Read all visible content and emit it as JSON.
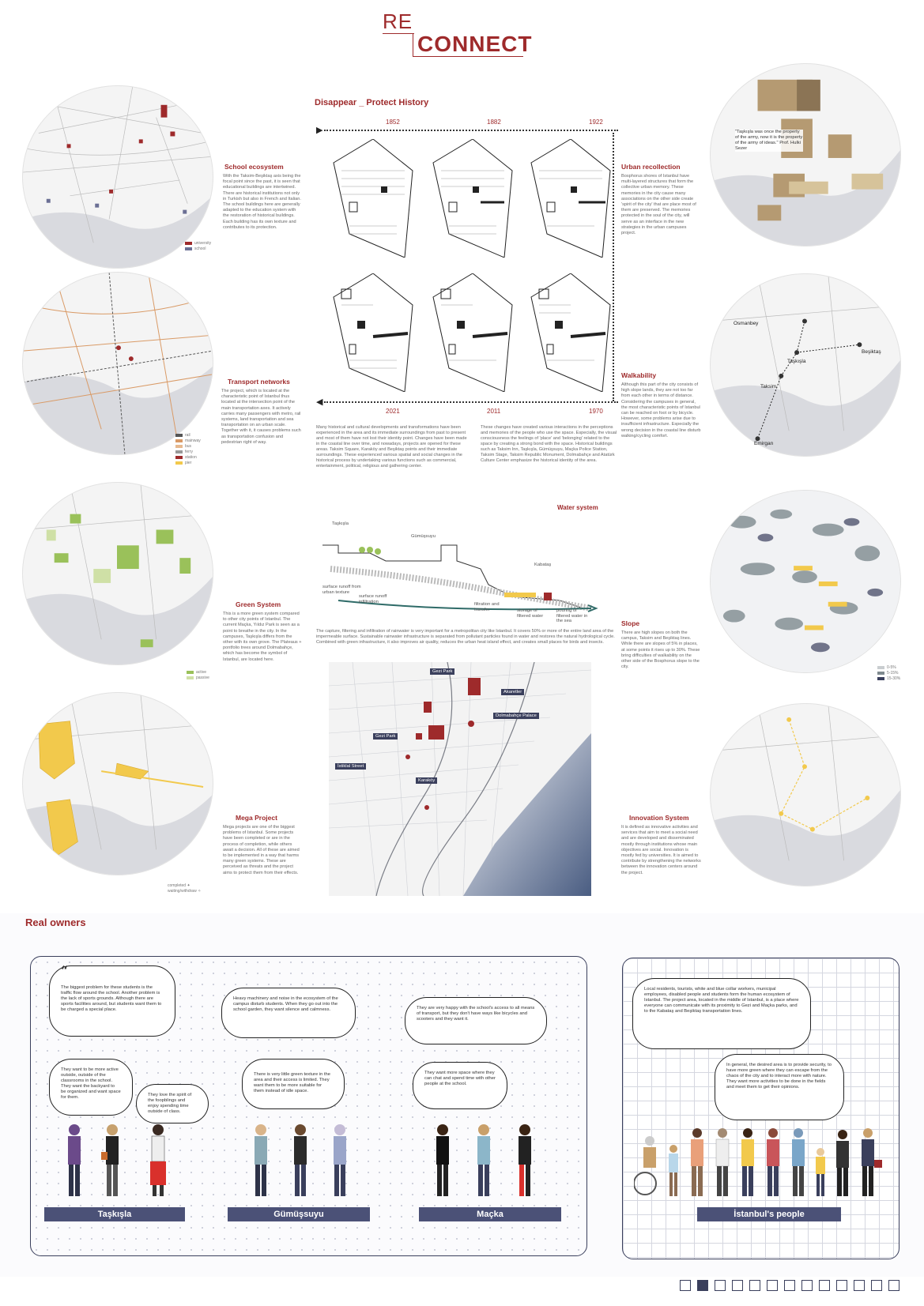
{
  "title": {
    "part1": "RE",
    "part2": "CONNECT"
  },
  "left_sections": [
    {
      "id": "school",
      "title": "School ecosystem",
      "text": "With the Taksim-Beşiktaş axis being the focal point since the past, it is seen that educational buildings are intertwined. There are historical institutions not only in Turkish but also in French and Italian. The school buildings here are generally adapted to the education system with the restoration of historical buildings. Each building has its own texture and contributes to its protection.",
      "legend": [
        "university",
        "school"
      ]
    },
    {
      "id": "transport",
      "title": "Transport networks",
      "text": "The project, which is located at the characteristic point of Istanbul thus located at the intersection point of the main transportation axes. It actively carries many passengers with metro, rail systems, land transportation and sea transportation on an urban scale. Together with it, it causes problems such as transportation confusion and pedestrian right of way.",
      "legend": [
        "rail",
        "mainway",
        "bus",
        "ferry",
        "station",
        "pier"
      ]
    },
    {
      "id": "green",
      "title": "Green System",
      "text": "This is a more green system compared to other city points of Istanbul. The current Maçka, Yıldız Park is seen as a point to breathe in the city. In the campuses, Taşkışla differs from the other with its own grove. The Plateaus + pontfolio trees around Dolmabahçe, which has become the symbol of Istanbul, are located here.",
      "legend": [
        "active",
        "passive"
      ]
    },
    {
      "id": "mega",
      "title": "Mega Project",
      "text": "Mega projects are one of the biggest problems of Istanbul. Some projects have been completed or are in the process of completion, while others await a decision. All of these are aimed to be implemented in a way that harms many green systems. These are perceived as threats and the project aims to protect them from their effects.",
      "legend": [
        "completed",
        "waiting/withdraw"
      ]
    }
  ],
  "right_sections": [
    {
      "id": "urban",
      "title": "Urban recollection",
      "text": "Bosphorus shores of Istanbul have multi-layered structures that form the collective urban memory. These memories in the city cause many associations on the other side create 'spirit of the city' that are place most of them are preserved. The memories protected in the soul of the city, will serve as an interface in the new strategies in the urban campuses project.",
      "quote": "\"Taşkışla was once the property of the army, now it is the property of the army of ideas.\" Prof. Hulki Sezer"
    },
    {
      "id": "walk",
      "title": "Walkability",
      "text": "Although this part of the city consists of high slope lands, they are not too far from each other in terms of distance. Considering the campuses in general, the most characteristic points of Istanbul can be reached on foot or by bicycle. However, some problems arise due to insufficient infrastructure. Especially the wrong decision in the coastal line disturb walking/cycling comfort.",
      "places": [
        "Osmanbey",
        "Taşkışla",
        "Taksim",
        "Beşiktaş",
        "Emirgan"
      ]
    },
    {
      "id": "slope",
      "title": "Slope",
      "text": "There are high slopes on both the campus, Taksim and Beşiktaş lines. While there are slopes of 5% in places, at some points it rises up to 30%. These bring difficulties of walkability on the other side of the Bosphorus slope to the city.",
      "legend": [
        "0-5%",
        "5-15%",
        "15-30%"
      ]
    },
    {
      "id": "innovation",
      "title": "Innovation System",
      "text": "It is defined as innovative activities and services that aim to meet a social need and are developed and disseminated mostly through institutions whose main objectives are social. Innovation is mostly fed by universities. It is aimed to contribute by strengthening the networks between the innovation centers around the project."
    }
  ],
  "history": {
    "title": "Disappear _ Protect History",
    "top_years": [
      "1852",
      "1882",
      "1922"
    ],
    "bottom_years": [
      "2021",
      "2011",
      "1970"
    ],
    "text_left": "Many historical and cultural developments and transformations have been experienced in the area and its immediate surroundings from past to present and most of them have not lost their identity point. Changes have been made in the coastal line over time, and nowadays, projects are opened for these areas. Taksim Square, Karaköy and Beşiktaş points and their immediate surroundings. These experienced various spatial and social changes in the historical process by undertaking various functions such as commercial, entertainment, political, religious and gathering center.",
    "text_right": "These changes have created various interactions in the perceptions and memories of the people who use the space. Especially, the visual consciousness the feelings of 'place' and 'belonging' related to the space by creating a strong bond with the space. Historical buildings such as Taksim Inn, Taşkışla, Gümüşsuyu, Maçka Police Station, Taksim Stage, Taksim Republic Monument, Dolmabahçe and Atatürk Culture Center emphasize the historical identity of the area."
  },
  "water": {
    "title": "Water system",
    "labels": {
      "taskisla": "Taşkışla",
      "gumussuyu": "Gümüşsuyu",
      "kabatas": "Kabataş",
      "runoff_urban": "surface runoff from urban texture",
      "runoff_infil": "surface runoff infiltration",
      "filtration": "filtration and transfer",
      "storage": "storage of filtered water",
      "pouring": "pouring of filtered water in the sea"
    },
    "text": "The capture, filtering and infiltration of rainwater is very important for a metropolitan city like Istanbul. It covers 50% or more of the entire land area of the impermeable surface. Sustainable rainwater infrastructure is separated from pollutant particles found in water and restores the natural hydrological cycle. Combined with green infrastructure, it also improves air quality, reduces the urban heat island effect, and creates small places for birds and insects."
  },
  "big_map": {
    "tags": [
      "Gezi Park",
      "Akaretler",
      "Dolmabahçe Palace",
      "Gezi Park",
      "İstiklal Street",
      "Karaköy"
    ]
  },
  "real_owners": {
    "title": "Real owners",
    "groups": [
      {
        "label": "Taşkışla",
        "quotes": [
          "The biggest problem for these students is the traffic flow around the school. Another problem is the lack of sports grounds. Although there are sports facilities around, but students want them to be charged a special place.",
          "They want to be more active outside, outside of the classrooms in the school. They want the backyard to be organized and want space for them.",
          "They love the spirit of the foopblings and enjoy spending time outside of class."
        ]
      },
      {
        "label": "Gümüşsuyu",
        "quotes": [
          "Heavy machinery and noise in the ecosystem of the campus disturb students. When they go out into the school garden, they want silence and calmness.",
          "There is very little green texture in the area and their access is limited. They want them to be more suitable for them instead of idle space."
        ]
      },
      {
        "label": "Maçka",
        "quotes": [
          "They are very happy with the school's access to all means of transport, but they don't have ways like bicycles and scooters and they want it.",
          "They want more space where they can chat and spend time with other people at the school."
        ]
      },
      {
        "label": "İstanbul's people",
        "quotes": [
          "Local residents, tourists, white and blue collar workers, municipal employees, disabled people and students form the human ecosystem of Istanbul. The project area, located in the middle of Istanbul, is a place where everyone can communicate with its proximity to Gezi and Maçka parks, and to the Kabataş and Beşiktaş transportation lines.",
          "In general, the desired area is to provide security, to have more green where they can escape from the chaos of the city and to interact more with nature. They want more activities to be done in the fields and meet them to get their opinions."
        ]
      }
    ]
  },
  "colors": {
    "accent": "#9e2a2b",
    "navy": "#3a3f5c",
    "label_bg": "#4b5177",
    "yellow": "#f2c94c",
    "green": "#9ac15a"
  },
  "pager": {
    "count": 13,
    "active": 2
  }
}
